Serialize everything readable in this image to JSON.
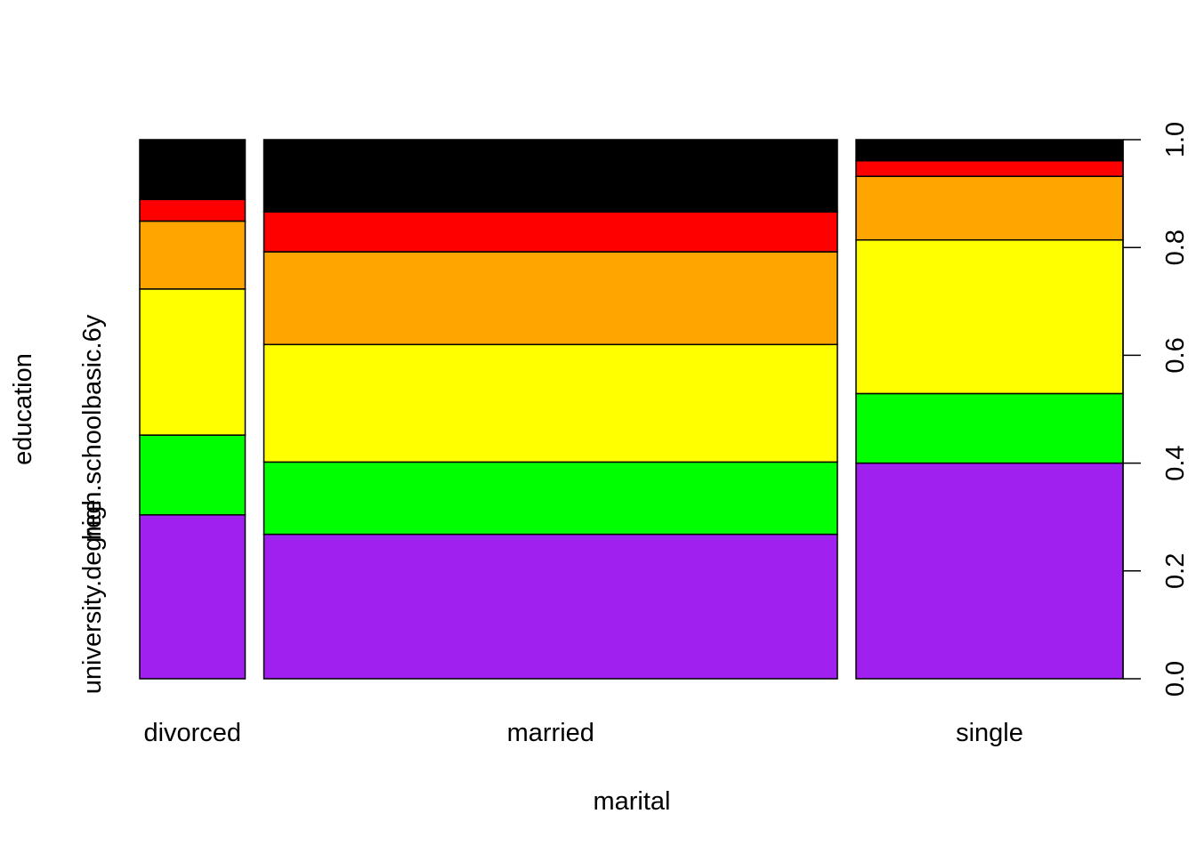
{
  "chart_data": {
    "type": "mosaic",
    "xlabel": "marital",
    "ylabel": "education",
    "categories": [
      "divorced",
      "married",
      "single"
    ],
    "category_widths": [
      0.128,
      0.696,
      0.324
    ],
    "y_tick_labels_left": [
      "university.degree",
      "high.school",
      "basic.6y"
    ],
    "y_ticks_right": [
      "0.0",
      "0.2",
      "0.4",
      "0.6",
      "0.8",
      "1.0"
    ],
    "ylim": [
      0,
      1
    ],
    "segment_colors": [
      "#A020F0",
      "#00FF00",
      "#FFFF00",
      "#FFA500",
      "#FF0000",
      "#000000"
    ],
    "columns": [
      {
        "category": "divorced",
        "boundaries": [
          0.304,
          0.452,
          0.723,
          0.849,
          0.889,
          1.0
        ]
      },
      {
        "category": "married",
        "boundaries": [
          0.268,
          0.402,
          0.62,
          0.792,
          0.866,
          1.0
        ]
      },
      {
        "category": "single",
        "boundaries": [
          0.4,
          0.529,
          0.814,
          0.932,
          0.961,
          1.0
        ]
      }
    ]
  }
}
